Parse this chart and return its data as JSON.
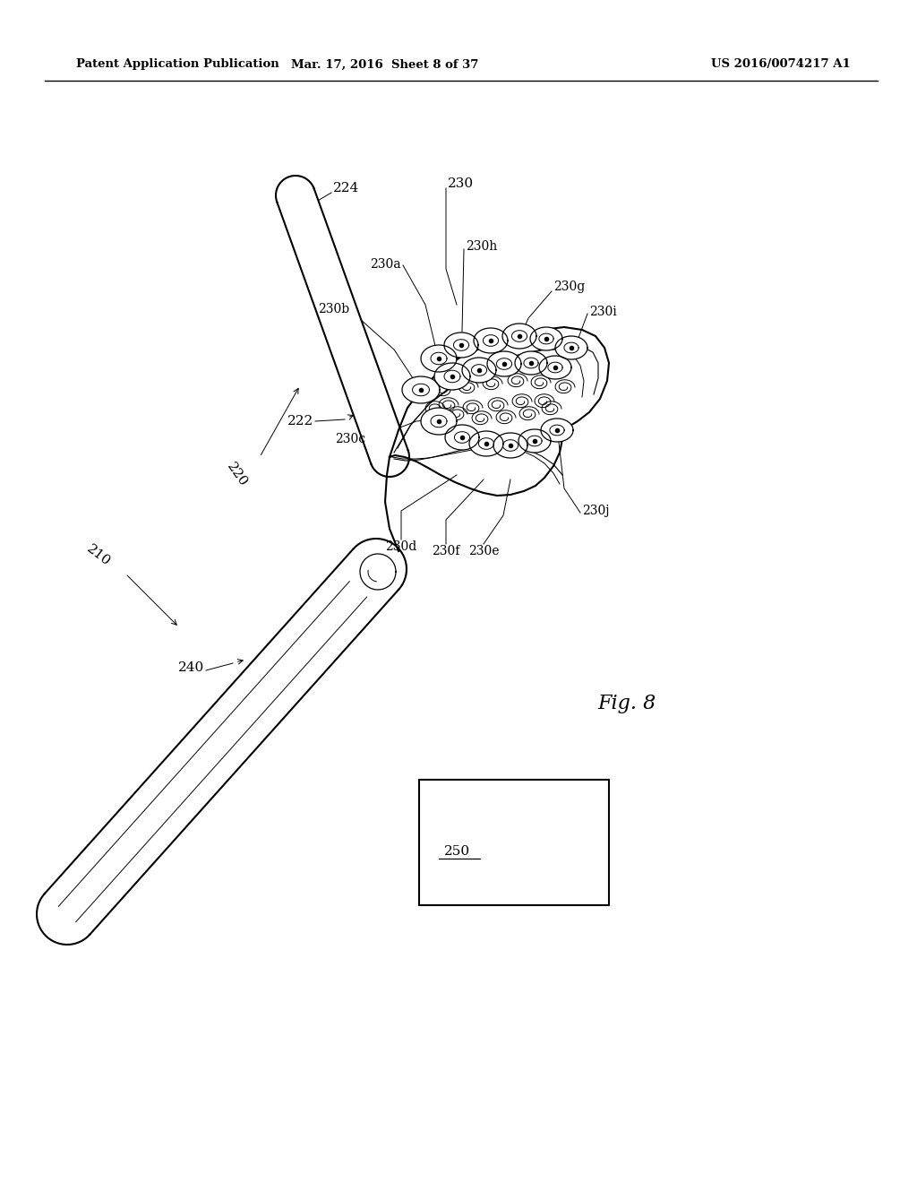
{
  "background_color": "#ffffff",
  "header_left": "Patent Application Publication",
  "header_mid": "Mar. 17, 2016  Sheet 8 of 37",
  "header_right": "US 2016/0074217 A1",
  "fig_label": "Fig. 8",
  "page_width": 10.24,
  "page_height": 13.2
}
